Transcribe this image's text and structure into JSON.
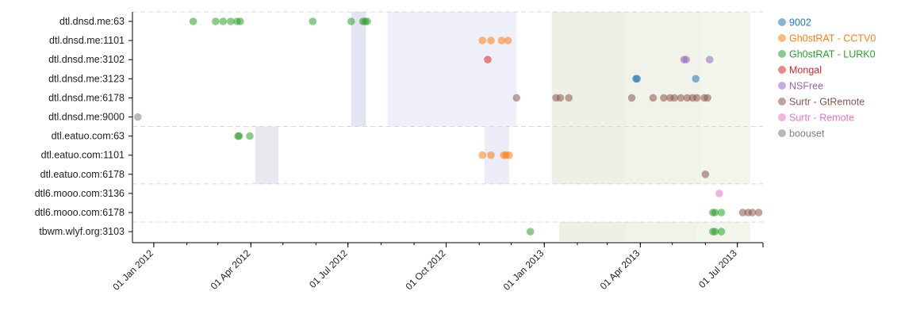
{
  "chart_data": {
    "type": "scatter",
    "title": "",
    "xlabel": "",
    "ylabel": "",
    "x_axis": {
      "type": "time",
      "range": [
        "2011-12-12",
        "2013-07-25"
      ],
      "ticks": [
        {
          "date": "2012-01-01",
          "label": "01 Jan 2012"
        },
        {
          "date": "2012-04-01",
          "label": "01 Apr 2012"
        },
        {
          "date": "2012-07-01",
          "label": "01 Jul 2012"
        },
        {
          "date": "2012-10-01",
          "label": "01 Oct 2012"
        },
        {
          "date": "2013-01-01",
          "label": "01 Jan 2013"
        },
        {
          "date": "2013-04-01",
          "label": "01 Apr 2013"
        },
        {
          "date": "2013-07-01",
          "label": "01 Jul 2013"
        }
      ]
    },
    "categories": [
      "dtl.dnsd.me:63",
      "dtl.dnsd.me:1101",
      "dtl.dnsd.me:3102",
      "dtl.dnsd.me:3123",
      "dtl.dnsd.me:6178",
      "dtl.dnsd.me:9000",
      "dtl.eatuo.com:63",
      "dtl.eatuo.com:1101",
      "dtl.eatuo.com:6178",
      "dtl6.mooo.com:3136",
      "dtl6.mooo.com:6178",
      "tbwm.wlyf.org:3103"
    ],
    "group_separators_after": [
      "dtl.dnsd.me:9000",
      "dtl.eatuo.com:6178",
      "dtl6.mooo.com:6178"
    ],
    "shaded_periods": [
      {
        "start": "2012-07-04",
        "end": "2012-07-18",
        "color": "#e4e5f2",
        "rows": [
          "dtl.dnsd.me:63",
          "dtl.dnsd.me:9000"
        ]
      },
      {
        "start": "2012-08-07",
        "end": "2012-12-06",
        "color": "#efeff9",
        "rows": [
          "dtl.dnsd.me:63",
          "dtl.dnsd.me:9000"
        ]
      },
      {
        "start": "2012-04-05",
        "end": "2012-04-27",
        "color": "#e8e8ee",
        "rows": [
          "dtl.eatuo.com:63",
          "dtl.eatuo.com:6178"
        ]
      },
      {
        "start": "2012-11-06",
        "end": "2012-11-29",
        "color": "#ebecf7",
        "rows": [
          "dtl.eatuo.com:63",
          "dtl.eatuo.com:6178"
        ]
      },
      {
        "start": "2013-01-08",
        "end": "2013-03-19",
        "color": "#eeefe6",
        "rows": [
          "dtl.dnsd.me:63",
          "dtl.eatuo.com:6178"
        ]
      },
      {
        "start": "2013-03-19",
        "end": "2013-05-28",
        "color": "#f1f2ea",
        "rows": [
          "dtl.dnsd.me:63",
          "dtl.eatuo.com:6178"
        ]
      },
      {
        "start": "2013-05-28",
        "end": "2013-07-13",
        "color": "#f3f6ea",
        "rows": [
          "dtl.dnsd.me:63",
          "dtl.eatuo.com:6178"
        ]
      },
      {
        "start": "2013-01-15",
        "end": "2013-03-19",
        "color": "#eeefe6",
        "rows": [
          "tbwm.wlyf.org:3103",
          "tbwm.wlyf.org:3103"
        ]
      },
      {
        "start": "2013-03-19",
        "end": "2013-05-24",
        "color": "#f1f2ea",
        "rows": [
          "tbwm.wlyf.org:3103",
          "tbwm.wlyf.org:3103"
        ]
      },
      {
        "start": "2013-05-24",
        "end": "2013-07-13",
        "color": "#f3f6ea",
        "rows": [
          "tbwm.wlyf.org:3103",
          "tbwm.wlyf.org:3103"
        ]
      }
    ],
    "legend": {
      "position": "right",
      "entries": [
        {
          "name": "9002",
          "color": "#1f77b4",
          "label_color": "#1f77b4"
        },
        {
          "name": "Gh0stRAT - CCTV0",
          "color": "#ff7f0e",
          "label_color": "#ff7f0e"
        },
        {
          "name": "Gh0stRAT - LURK0",
          "color": "#2ca02c",
          "label_color": "#2ca02c"
        },
        {
          "name": "Mongal",
          "color": "#d62728",
          "label_color": "#d62728"
        },
        {
          "name": "NSFree",
          "color": "#9467bd",
          "label_color": "#9467bd"
        },
        {
          "name": "Surtr - GtRemote",
          "color": "#8c564b",
          "label_color": "#8c564b"
        },
        {
          "name": "Surtr - Remote",
          "color": "#e377c2",
          "label_color": "#e377c2"
        },
        {
          "name": "boouset",
          "color": "#7f7f7f",
          "label_color": "#7f7f7f"
        }
      ]
    },
    "series": [
      {
        "name": "9002",
        "color": "#1f77b4",
        "points": [
          {
            "x": "2013-03-28",
            "y": "dtl.dnsd.me:3123"
          },
          {
            "x": "2013-03-29",
            "y": "dtl.dnsd.me:3123"
          },
          {
            "x": "2013-05-23",
            "y": "dtl.dnsd.me:3123"
          }
        ]
      },
      {
        "name": "Gh0stRAT - CCTV0",
        "color": "#ff7f0e",
        "points": [
          {
            "x": "2012-11-04",
            "y": "dtl.dnsd.me:1101"
          },
          {
            "x": "2012-11-12",
            "y": "dtl.dnsd.me:1101"
          },
          {
            "x": "2012-11-22",
            "y": "dtl.dnsd.me:1101"
          },
          {
            "x": "2012-11-28",
            "y": "dtl.dnsd.me:1101"
          },
          {
            "x": "2012-11-04",
            "y": "dtl.eatuo.com:1101"
          },
          {
            "x": "2012-11-12",
            "y": "dtl.eatuo.com:1101"
          },
          {
            "x": "2012-11-24",
            "y": "dtl.eatuo.com:1101"
          },
          {
            "x": "2012-11-26",
            "y": "dtl.eatuo.com:1101"
          },
          {
            "x": "2012-11-29",
            "y": "dtl.eatuo.com:1101"
          }
        ]
      },
      {
        "name": "Gh0stRAT - LURK0",
        "color": "#2ca02c",
        "points": [
          {
            "x": "2012-02-07",
            "y": "dtl.dnsd.me:63"
          },
          {
            "x": "2012-02-28",
            "y": "dtl.dnsd.me:63"
          },
          {
            "x": "2012-03-06",
            "y": "dtl.dnsd.me:63"
          },
          {
            "x": "2012-03-13",
            "y": "dtl.dnsd.me:63"
          },
          {
            "x": "2012-03-19",
            "y": "dtl.dnsd.me:63"
          },
          {
            "x": "2012-03-22",
            "y": "dtl.dnsd.me:63"
          },
          {
            "x": "2012-05-29",
            "y": "dtl.dnsd.me:63"
          },
          {
            "x": "2012-07-04",
            "y": "dtl.dnsd.me:63"
          },
          {
            "x": "2012-07-15",
            "y": "dtl.dnsd.me:63"
          },
          {
            "x": "2012-07-17",
            "y": "dtl.dnsd.me:63"
          },
          {
            "x": "2012-07-19",
            "y": "dtl.dnsd.me:63"
          },
          {
            "x": "2012-03-20",
            "y": "dtl.eatuo.com:63"
          },
          {
            "x": "2012-03-21",
            "y": "dtl.eatuo.com:63"
          },
          {
            "x": "2012-03-31",
            "y": "dtl.eatuo.com:63"
          },
          {
            "x": "2012-12-19",
            "y": "tbwm.wlyf.org:3103"
          },
          {
            "x": "2013-06-08",
            "y": "dtl6.mooo.com:6178"
          },
          {
            "x": "2013-06-10",
            "y": "dtl6.mooo.com:6178"
          },
          {
            "x": "2013-06-16",
            "y": "dtl6.mooo.com:6178"
          },
          {
            "x": "2013-06-08",
            "y": "tbwm.wlyf.org:3103"
          },
          {
            "x": "2013-06-10",
            "y": "tbwm.wlyf.org:3103"
          },
          {
            "x": "2013-06-16",
            "y": "tbwm.wlyf.org:3103"
          }
        ]
      },
      {
        "name": "Mongal",
        "color": "#d62728",
        "points": [
          {
            "x": "2012-11-09",
            "y": "dtl.dnsd.me:3102"
          }
        ]
      },
      {
        "name": "NSFree",
        "color": "#9467bd",
        "points": [
          {
            "x": "2013-05-12",
            "y": "dtl.dnsd.me:3102"
          },
          {
            "x": "2013-05-14",
            "y": "dtl.dnsd.me:3102"
          },
          {
            "x": "2013-06-05",
            "y": "dtl.dnsd.me:3102"
          }
        ]
      },
      {
        "name": "Surtr - GtRemote",
        "color": "#8c564b",
        "points": [
          {
            "x": "2012-12-06",
            "y": "dtl.dnsd.me:6178"
          },
          {
            "x": "2013-01-12",
            "y": "dtl.dnsd.me:6178"
          },
          {
            "x": "2013-01-16",
            "y": "dtl.dnsd.me:6178"
          },
          {
            "x": "2013-01-24",
            "y": "dtl.dnsd.me:6178"
          },
          {
            "x": "2013-03-24",
            "y": "dtl.dnsd.me:6178"
          },
          {
            "x": "2013-04-13",
            "y": "dtl.dnsd.me:6178"
          },
          {
            "x": "2013-04-23",
            "y": "dtl.dnsd.me:6178"
          },
          {
            "x": "2013-04-29",
            "y": "dtl.dnsd.me:6178"
          },
          {
            "x": "2013-05-03",
            "y": "dtl.dnsd.me:6178"
          },
          {
            "x": "2013-05-09",
            "y": "dtl.dnsd.me:6178"
          },
          {
            "x": "2013-05-15",
            "y": "dtl.dnsd.me:6178"
          },
          {
            "x": "2013-05-20",
            "y": "dtl.dnsd.me:6178"
          },
          {
            "x": "2013-05-24",
            "y": "dtl.dnsd.me:6178"
          },
          {
            "x": "2013-05-31",
            "y": "dtl.dnsd.me:6178"
          },
          {
            "x": "2013-06-03",
            "y": "dtl.dnsd.me:6178"
          },
          {
            "x": "2013-06-01",
            "y": "dtl.eatuo.com:6178"
          },
          {
            "x": "2013-07-06",
            "y": "dtl6.mooo.com:6178"
          },
          {
            "x": "2013-07-11",
            "y": "dtl6.mooo.com:6178"
          },
          {
            "x": "2013-07-15",
            "y": "dtl6.mooo.com:6178"
          },
          {
            "x": "2013-07-21",
            "y": "dtl6.mooo.com:6178"
          }
        ]
      },
      {
        "name": "Surtr - Remote",
        "color": "#e377c2",
        "points": [
          {
            "x": "2013-06-14",
            "y": "dtl6.mooo.com:3136"
          }
        ]
      },
      {
        "name": "boouset",
        "color": "#7f7f7f",
        "points": [
          {
            "x": "2011-12-17",
            "y": "dtl.dnsd.me:9000"
          }
        ]
      }
    ]
  }
}
